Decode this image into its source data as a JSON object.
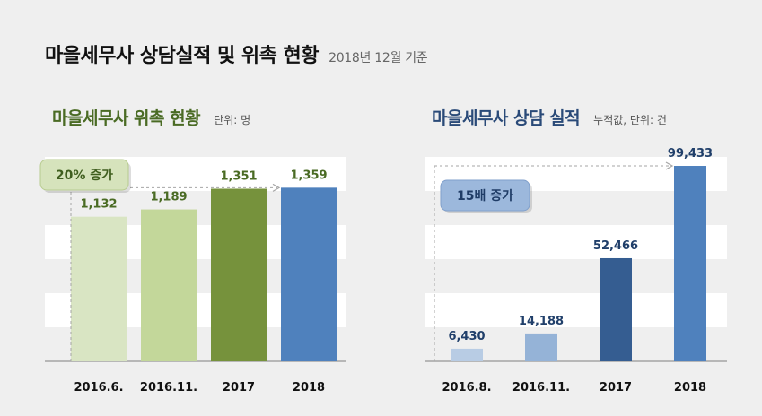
{
  "header": {
    "title": "마을세무사 상담실적 및 위촉 현황",
    "subtitle": "2018년 12월 기준"
  },
  "colors": {
    "left_title": "#4a6b24",
    "right_title": "#2a4a78",
    "grid_band": "#ffffff",
    "left_labels": "#4a6b24",
    "right_labels": "#203f6a"
  },
  "chart_data": [
    {
      "type": "bar",
      "title": "마을세무사 위촉 현황",
      "unit_note": "단위: 명",
      "categories": [
        "2016.6.",
        "2016.11.",
        "2017",
        "2018"
      ],
      "values": [
        1132,
        1189,
        1351,
        1359
      ],
      "value_labels": [
        "1,132",
        "1,189",
        "1,351",
        "1,359"
      ],
      "bar_colors": [
        "#d9e5c3",
        "#c3d79a",
        "#76923c",
        "#4f81bd"
      ],
      "ylim": [
        0,
        1600
      ],
      "callout": "20% 증가",
      "grid": "horizontal bands"
    },
    {
      "type": "bar",
      "title": "마을세무사 상담 실적",
      "unit_note": "누적값, 단위: 건",
      "categories": [
        "2016.8.",
        "2016.11.",
        "2017",
        "2018"
      ],
      "values": [
        6430,
        14188,
        52466,
        99433
      ],
      "value_labels": [
        "6,430",
        "14,188",
        "52,466",
        "99,433"
      ],
      "bar_colors": [
        "#b8cce4",
        "#95b3d7",
        "#355d91",
        "#4f81bd"
      ],
      "ylim": [
        0,
        104000
      ],
      "callout": "15배 증가",
      "grid": "horizontal bands"
    }
  ]
}
